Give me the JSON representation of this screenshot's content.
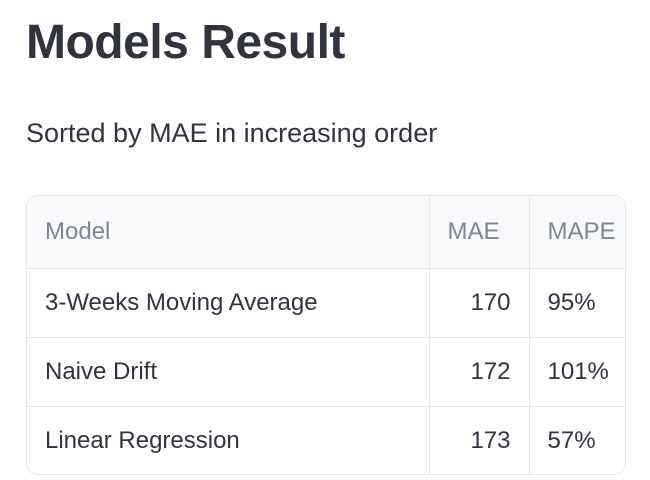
{
  "header": {
    "title": "Models Result",
    "subtitle": "Sorted by MAE in increasing order"
  },
  "table": {
    "columns": [
      "Model",
      "MAE",
      "MAPE"
    ],
    "rows": [
      {
        "model": "3-Weeks Moving Average",
        "mae": "170",
        "mape": "95%"
      },
      {
        "model": "Naive Drift",
        "mae": "172",
        "mape": "101%"
      },
      {
        "model": "Linear Regression",
        "mae": "173",
        "mape": "57%"
      }
    ]
  },
  "colors": {
    "text": "#31333f",
    "header_text": "#808495",
    "header_bg": "#f8f9fb",
    "border": "#e6e7ea"
  }
}
